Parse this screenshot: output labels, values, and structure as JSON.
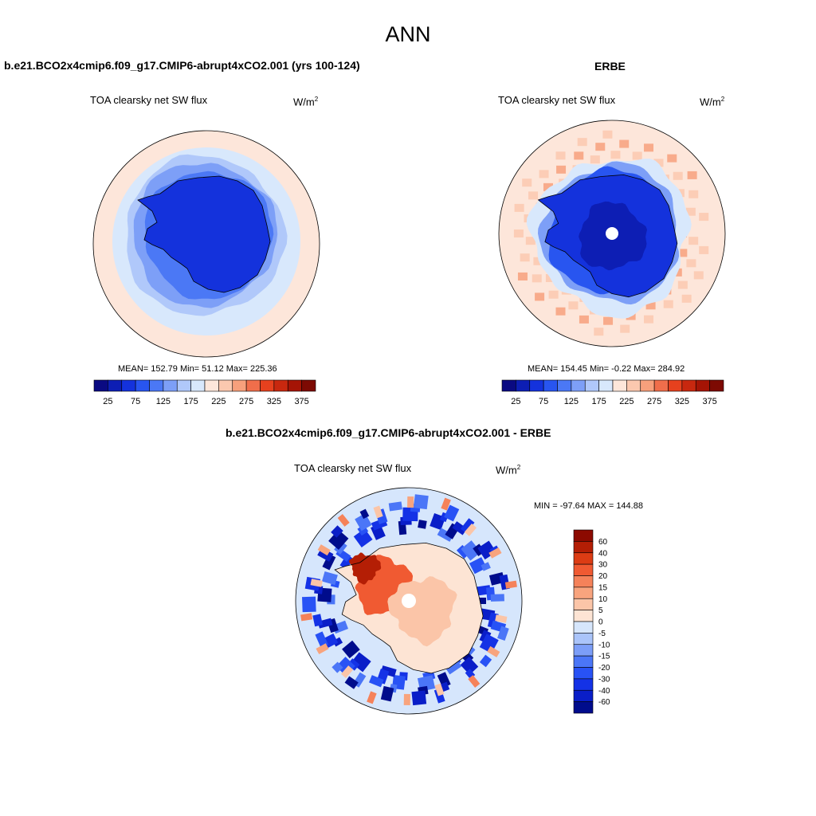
{
  "page": {
    "title": "ANN",
    "units_base": "W/m",
    "units_exp": "2"
  },
  "chart_data": [
    {
      "type": "heatmap",
      "projection": "south-polar-stereographic",
      "title": "b.e21.BCO2x4cmip6.f09_g17.CMIP6-abrupt4xCO2.001 (yrs 100-124)",
      "subtitle": "TOA clearsky net SW flux",
      "units": "W/m2",
      "stats": {
        "mean": "152.79",
        "min": "51.12",
        "max": "225.36"
      },
      "stats_text": "MEAN= 152.79  Min=  51.12  Max= 225.36",
      "levels": [
        25,
        50,
        75,
        100,
        125,
        150,
        175,
        200,
        225,
        250,
        275,
        300,
        325,
        350,
        375
      ],
      "tick_labels": [
        "25",
        "75",
        "125",
        "175",
        "225",
        "275",
        "325",
        "375"
      ],
      "colors": [
        "#0a0a82",
        "#0d1eb4",
        "#1432dc",
        "#2855f0",
        "#4b78f5",
        "#7d9ff7",
        "#b0c8fa",
        "#d8e8fc",
        "#fde6da",
        "#fbc8af",
        "#f7a07c",
        "#f06e4b",
        "#e6411e",
        "#c8280f",
        "#a51405",
        "#7d0a03"
      ]
    },
    {
      "type": "heatmap",
      "projection": "south-polar-stereographic",
      "title": "ERBE",
      "subtitle": "TOA clearsky net SW flux",
      "units": "W/m2",
      "stats": {
        "mean": "154.45",
        "min": "-0.22",
        "max": "284.92"
      },
      "stats_text": "MEAN= 154.45  Min=  -0.22  Max= 284.92",
      "levels": [
        25,
        50,
        75,
        100,
        125,
        150,
        175,
        200,
        225,
        250,
        275,
        300,
        325,
        350,
        375
      ],
      "tick_labels": [
        "25",
        "75",
        "125",
        "175",
        "225",
        "275",
        "325",
        "375"
      ],
      "colors": [
        "#0a0a82",
        "#0d1eb4",
        "#1432dc",
        "#2855f0",
        "#4b78f5",
        "#7d9ff7",
        "#b0c8fa",
        "#d8e8fc",
        "#fde6da",
        "#fbc8af",
        "#f7a07c",
        "#f06e4b",
        "#e6411e",
        "#c8280f",
        "#a51405",
        "#7d0a03"
      ]
    },
    {
      "type": "heatmap",
      "projection": "south-polar-stereographic",
      "title": "b.e21.BCO2x4cmip6.f09_g17.CMIP6-abrupt4xCO2.001 - ERBE",
      "subtitle": "TOA clearsky net SW flux",
      "units": "W/m2",
      "stats": {
        "min": "-97.64",
        "max": "144.88"
      },
      "stats_text": "MIN = -97.64 MAX = 144.88",
      "levels": [
        -60,
        -40,
        -30,
        -20,
        -15,
        -10,
        -5,
        0,
        5,
        10,
        15,
        20,
        30,
        40,
        60
      ],
      "tick_labels": [
        "60",
        "40",
        "30",
        "20",
        "15",
        "10",
        "5",
        "0",
        "-5",
        "-10",
        "-15",
        "-20",
        "-30",
        "-40",
        "-60"
      ],
      "colors": [
        "#000c8c",
        "#0a1ec8",
        "#1432e6",
        "#2852f5",
        "#4b76f7",
        "#7c9ef8",
        "#aac4fa",
        "#d6e6fc",
        "#fde4d4",
        "#fbc5a8",
        "#f8a47e",
        "#f5825a",
        "#f05a32",
        "#dc3c14",
        "#b41e05",
        "#8c0a00"
      ]
    }
  ]
}
